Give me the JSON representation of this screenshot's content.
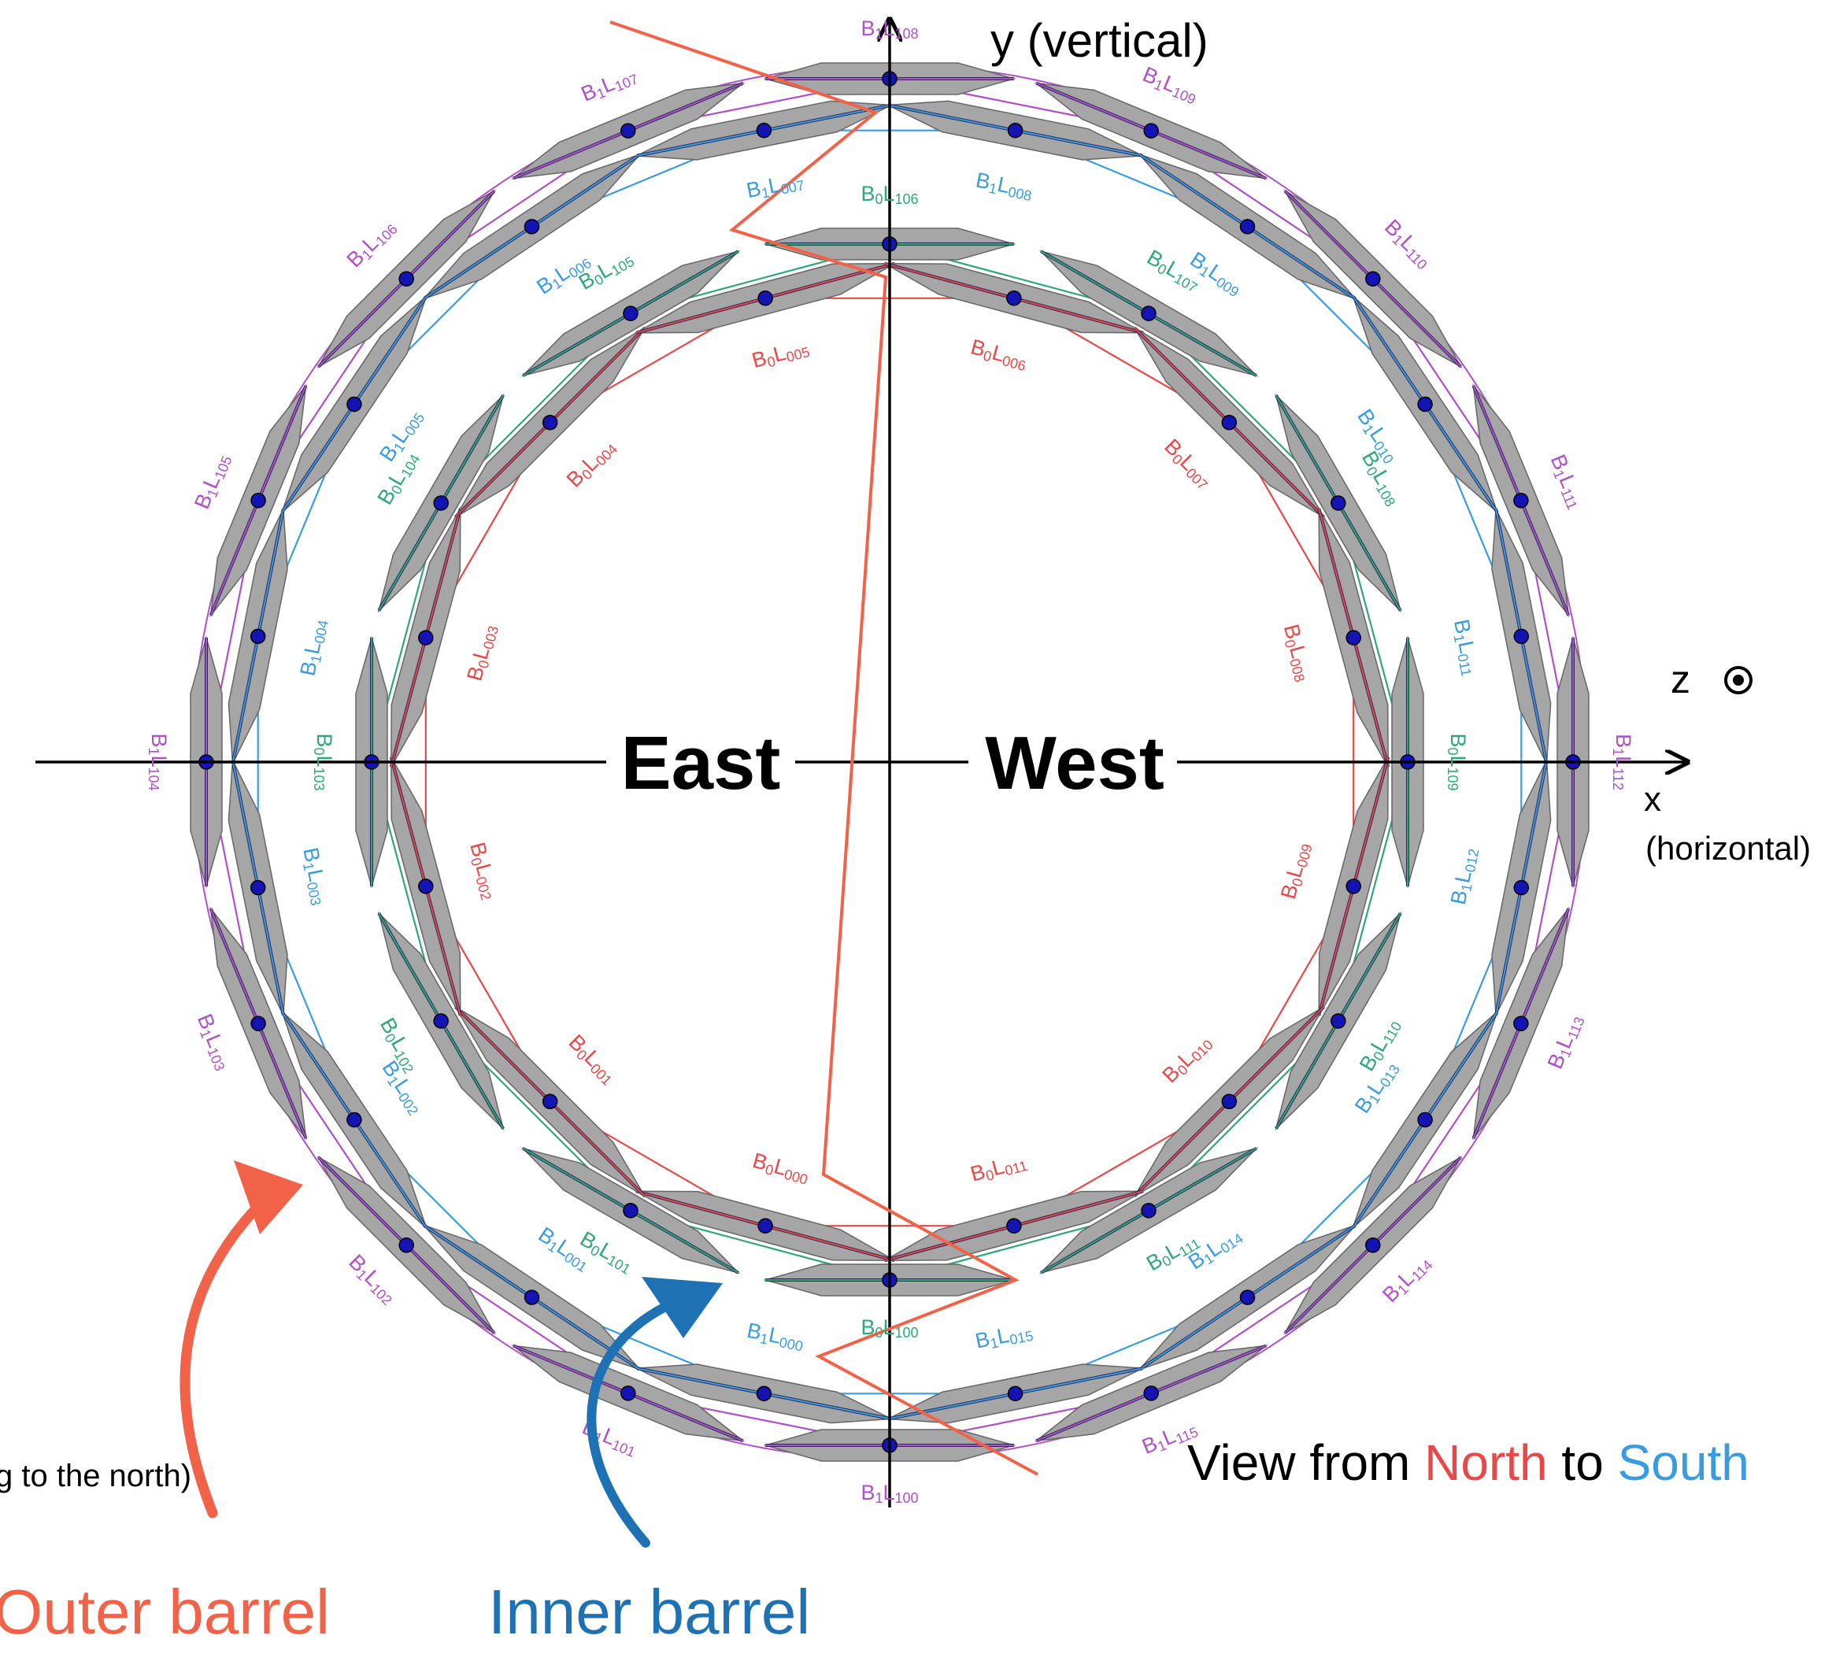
{
  "axes": {
    "y_label": "y (vertical)",
    "x_label": "x",
    "x_sublabel": "(horizontal)",
    "z_label": "z"
  },
  "sides": {
    "east": "East",
    "west": "West"
  },
  "view": {
    "prefix": "View from ",
    "from": "North",
    "middle": " to ",
    "to": "South"
  },
  "partial_note": "g to the north)",
  "annotations": {
    "outer": "Outer barrel",
    "inner": "Inner barrel"
  },
  "colors": {
    "b1l1": "#b050c8",
    "b1l0": "#3a9ce0",
    "b0l1": "#2ea878",
    "b0l0": "#e84848",
    "stave": "#a6a6a6",
    "sensor": "#1414b4",
    "zigzag": "#f26248",
    "outer_arrow": "#f26248",
    "inner_arrow": "#1e72b4",
    "north": "#e84848",
    "south": "#3a9ce0"
  },
  "rings": [
    {
      "name": "B1L1",
      "prefix": "B",
      "layer_sub": "1",
      "mid": "L",
      "start": 100,
      "count": 16,
      "color_key": "b1l1"
    },
    {
      "name": "B1L0",
      "prefix": "B",
      "layer_sub": "1",
      "mid": "L",
      "start": 0,
      "count": 16,
      "color_key": "b1l0"
    },
    {
      "name": "B0L1",
      "prefix": "B",
      "layer_sub": "0",
      "mid": "L",
      "start": 100,
      "count": 12,
      "color_key": "b0l1"
    },
    {
      "name": "B0L0",
      "prefix": "B",
      "layer_sub": "0",
      "mid": "L",
      "start": 0,
      "count": 12,
      "color_key": "b0l0"
    }
  ]
}
